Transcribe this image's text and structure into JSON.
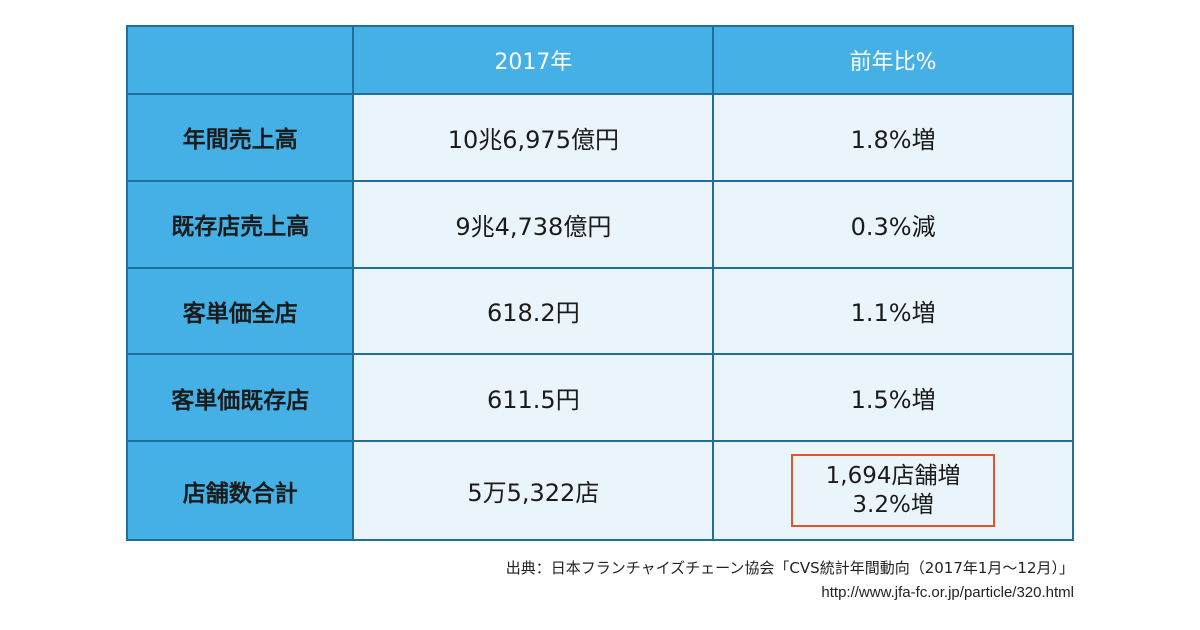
{
  "table": {
    "header": {
      "corner": "",
      "col1": "2017年",
      "col2": "前年比%"
    },
    "rows": [
      {
        "label": "年間売上高",
        "value": "10兆6,975億円",
        "change": "1.8%増"
      },
      {
        "label": "既存店売上高",
        "value": "9兆4,738億円",
        "change": "0.3%減"
      },
      {
        "label": "客単価全店",
        "value": "618.2円",
        "change": "1.1%増"
      },
      {
        "label": "客単価既存店",
        "value": "611.5円",
        "change": "1.5%増"
      },
      {
        "label": "店舗数合計",
        "value": "5万5,322店",
        "change_line1": "1,694店舗増",
        "change_line2": "3.2%増"
      }
    ]
  },
  "source": {
    "citation": "出典：日本フランチャイズチェーン協会「CVS統計年間動向（2017年1月〜12月）」",
    "url": "http://www.jfa-fc.or.jp/particle/320.html"
  },
  "colors": {
    "header_blue": "#45b0e6",
    "border": "#1f6f98",
    "cell_bg": "#eaf4fb",
    "highlight": "#e0562c"
  }
}
